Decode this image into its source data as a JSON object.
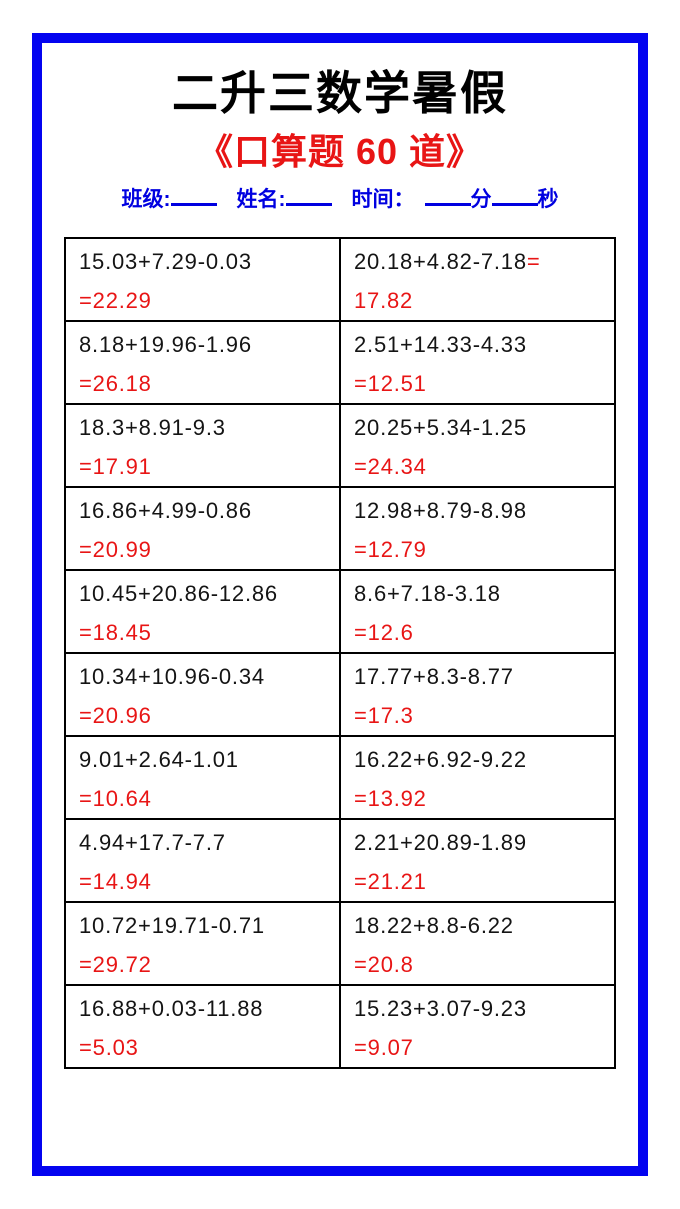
{
  "header": {
    "title": "二升三数学暑假",
    "subtitle": "《口算题 60 道》",
    "info": {
      "class_label": "班级:",
      "name_label": "姓名:",
      "time_label": "时间：",
      "minute_suffix": "分",
      "second_suffix": "秒"
    }
  },
  "colors": {
    "frame_blue": "#0404f0",
    "info_blue": "#0000e0",
    "accent_red": "#e81515",
    "text_black": "#141414"
  },
  "table": {
    "equals_sign": "=",
    "rows": [
      [
        {
          "problem": "15.03+7.29-0.03",
          "answer": "22.29",
          "eq_position": "line2"
        },
        {
          "problem": "20.18+4.82-7.18",
          "answer": "17.82",
          "eq_position": "line1"
        }
      ],
      [
        {
          "problem": "8.18+19.96-1.96",
          "answer": "26.18",
          "eq_position": "line2"
        },
        {
          "problem": "2.51+14.33-4.33",
          "answer": "12.51",
          "eq_position": "line2"
        }
      ],
      [
        {
          "problem": "18.3+8.91-9.3",
          "answer": "17.91",
          "eq_position": "line2"
        },
        {
          "problem": "20.25+5.34-1.25",
          "answer": "24.34",
          "eq_position": "line2"
        }
      ],
      [
        {
          "problem": "16.86+4.99-0.86",
          "answer": "20.99",
          "eq_position": "line2"
        },
        {
          "problem": "12.98+8.79-8.98",
          "answer": "12.79",
          "eq_position": "line2"
        }
      ],
      [
        {
          "problem": "10.45+20.86-12.86",
          "answer": "18.45",
          "eq_position": "line2"
        },
        {
          "problem": "8.6+7.18-3.18",
          "answer": "12.6",
          "eq_position": "line2"
        }
      ],
      [
        {
          "problem": "10.34+10.96-0.34",
          "answer": "20.96",
          "eq_position": "line2"
        },
        {
          "problem": "17.77+8.3-8.77",
          "answer": "17.3",
          "eq_position": "line2"
        }
      ],
      [
        {
          "problem": "9.01+2.64-1.01",
          "answer": "10.64",
          "eq_position": "line2"
        },
        {
          "problem": "16.22+6.92-9.22",
          "answer": "13.92",
          "eq_position": "line2"
        }
      ],
      [
        {
          "problem": "4.94+17.7-7.7",
          "answer": "14.94",
          "eq_position": "line2"
        },
        {
          "problem": "2.21+20.89-1.89",
          "answer": "21.21",
          "eq_position": "line2"
        }
      ],
      [
        {
          "problem": "10.72+19.71-0.71",
          "answer": "29.72",
          "eq_position": "line2"
        },
        {
          "problem": "18.22+8.8-6.22",
          "answer": "20.8",
          "eq_position": "line2"
        }
      ],
      [
        {
          "problem": "16.88+0.03-11.88",
          "answer": "5.03",
          "eq_position": "line2"
        },
        {
          "problem": "15.23+3.07-9.23",
          "answer": "9.07",
          "eq_position": "line2"
        }
      ]
    ]
  }
}
